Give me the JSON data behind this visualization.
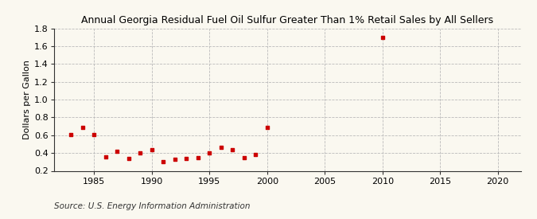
{
  "title": "Annual Georgia Residual Fuel Oil Sulfur Greater Than 1% Retail Sales by All Sellers",
  "ylabel": "Dollars per Gallon",
  "source": "Source: U.S. Energy Information Administration",
  "background_color": "#faf8f0",
  "plot_bg_color": "#faf8f0",
  "marker_color": "#cc0000",
  "grid_color": "#bbbbbb",
  "spine_color": "#333333",
  "xlim": [
    1981.5,
    2022
  ],
  "ylim": [
    0.2,
    1.8
  ],
  "xticks": [
    1985,
    1990,
    1995,
    2000,
    2005,
    2010,
    2015,
    2020
  ],
  "yticks": [
    0.2,
    0.4,
    0.6,
    0.8,
    1.0,
    1.2,
    1.4,
    1.6,
    1.8
  ],
  "years": [
    1983,
    1984,
    1985,
    1986,
    1987,
    1988,
    1989,
    1990,
    1991,
    1992,
    1993,
    1994,
    1995,
    1996,
    1997,
    1998,
    1999,
    2000,
    2010
  ],
  "values": [
    0.61,
    0.69,
    0.61,
    0.36,
    0.42,
    0.34,
    0.4,
    0.44,
    0.3,
    0.33,
    0.34,
    0.35,
    0.4,
    0.46,
    0.44,
    0.35,
    0.38,
    0.69,
    1.7
  ],
  "title_fontsize": 9,
  "ylabel_fontsize": 8,
  "tick_fontsize": 8,
  "source_fontsize": 7.5,
  "marker_size": 12
}
